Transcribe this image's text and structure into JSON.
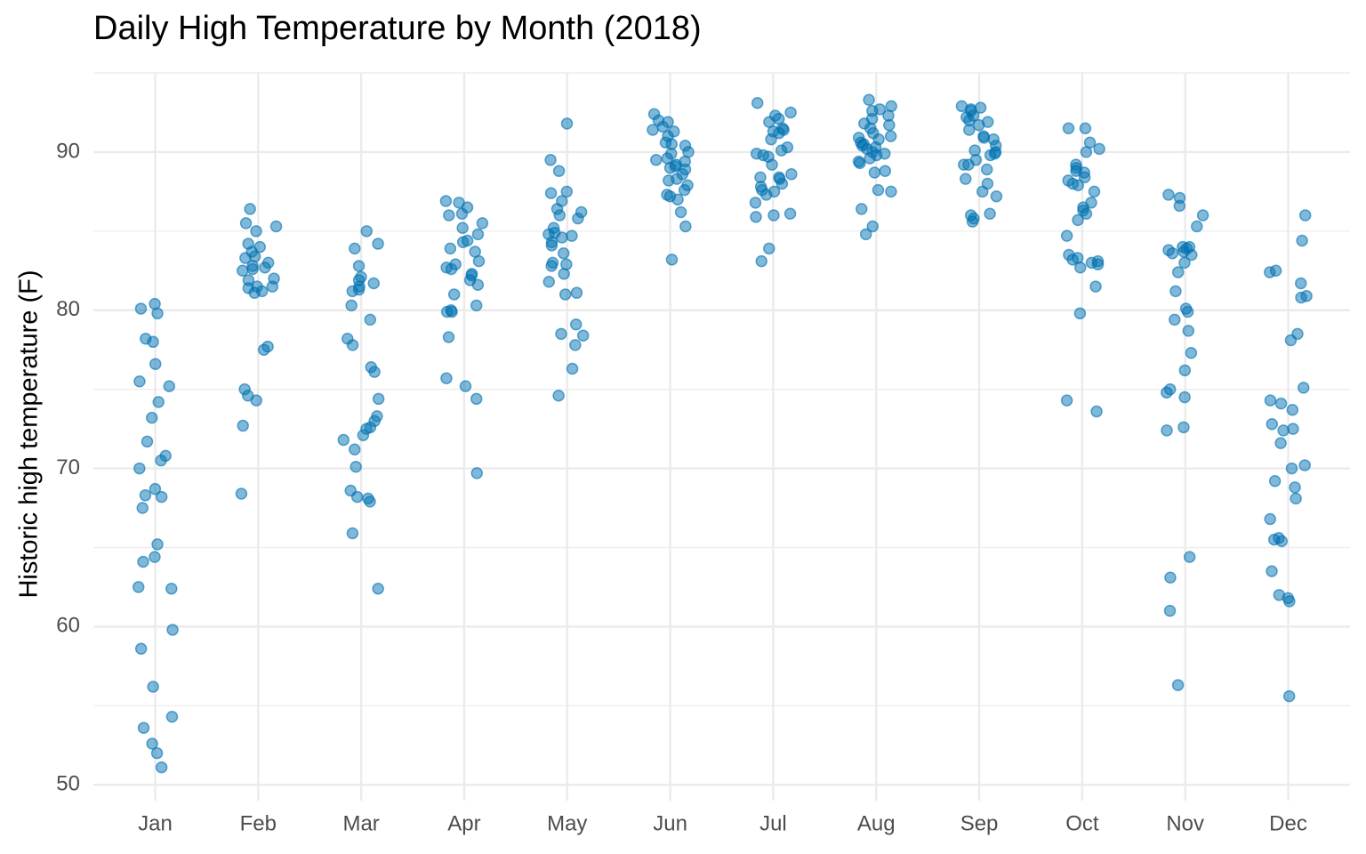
{
  "chart_data": {
    "type": "strip",
    "title": "Daily High Temperature by Month (2018)",
    "y_label": "Historic high temperature (F)",
    "categories": [
      "Jan",
      "Feb",
      "Mar",
      "Apr",
      "May",
      "Jun",
      "Jul",
      "Aug",
      "Sep",
      "Oct",
      "Nov",
      "Dec"
    ],
    "color": "#0072b2",
    "values": [
      [
        80.4,
        79.8,
        80.1,
        78.2,
        78.0,
        76.6,
        75.5,
        75.2,
        74.2,
        73.2,
        71.7,
        70.8,
        70.5,
        70.0,
        68.7,
        68.3,
        68.2,
        67.5,
        65.2,
        64.4,
        64.1,
        62.5,
        62.4,
        59.8,
        58.6,
        56.2,
        54.3,
        53.6,
        52.6,
        52.0,
        51.1
      ],
      [
        86.4,
        85.5,
        85.3,
        85.0,
        84.2,
        84.0,
        83.7,
        83.3,
        83.0,
        82.8,
        82.6,
        82.5,
        82.0,
        81.9,
        81.5,
        81.5,
        81.4,
        81.2,
        81.1,
        77.7,
        77.5,
        75.0,
        74.6,
        74.3,
        72.7,
        68.4,
        83.4,
        82.7
      ],
      [
        85.0,
        84.2,
        83.9,
        82.8,
        82.1,
        81.9,
        81.7,
        81.5,
        81.3,
        81.2,
        80.3,
        79.4,
        78.2,
        77.8,
        76.4,
        76.1,
        74.4,
        73.3,
        73.0,
        72.6,
        72.5,
        72.1,
        71.8,
        71.2,
        70.1,
        68.6,
        68.2,
        68.1,
        67.9,
        65.9,
        62.4
      ],
      [
        86.9,
        86.8,
        86.5,
        86.1,
        86.0,
        85.5,
        85.2,
        84.8,
        84.4,
        84.3,
        83.9,
        83.7,
        83.1,
        82.9,
        82.7,
        82.6,
        82.3,
        82.2,
        81.9,
        81.6,
        81.0,
        80.3,
        79.9,
        79.9,
        78.3,
        75.7,
        75.2,
        74.4,
        69.7,
        80.0
      ],
      [
        91.8,
        89.5,
        88.8,
        87.5,
        87.4,
        86.9,
        86.4,
        86.0,
        85.8,
        85.2,
        84.9,
        84.8,
        84.7,
        84.3,
        83.6,
        83.0,
        82.9,
        82.3,
        81.8,
        81.1,
        81.0,
        79.1,
        78.5,
        78.4,
        77.8,
        76.3,
        74.6,
        84.6,
        82.8,
        86.2,
        84.1
      ],
      [
        92.4,
        92.0,
        91.6,
        91.4,
        91.3,
        91.0,
        90.6,
        90.5,
        90.4,
        89.9,
        89.6,
        89.5,
        89.4,
        89.2,
        89.0,
        88.9,
        88.3,
        88.2,
        87.9,
        87.6,
        87.3,
        87.2,
        87.0,
        86.2,
        85.3,
        83.2,
        90.0,
        89.1,
        88.6,
        91.9
      ],
      [
        93.1,
        92.5,
        92.3,
        92.1,
        91.9,
        91.5,
        91.4,
        91.3,
        90.8,
        90.3,
        90.1,
        89.9,
        89.7,
        89.2,
        88.6,
        88.4,
        88.4,
        88.3,
        87.8,
        87.6,
        87.5,
        87.3,
        86.8,
        86.1,
        86.0,
        85.9,
        83.9,
        83.1,
        91.2,
        89.8,
        88.0
      ],
      [
        93.3,
        92.9,
        92.7,
        92.6,
        92.3,
        91.8,
        91.5,
        91.2,
        91.0,
        90.8,
        90.6,
        90.5,
        90.3,
        90.2,
        90.0,
        89.8,
        89.6,
        89.4,
        89.3,
        88.8,
        88.7,
        87.6,
        87.5,
        86.4,
        85.3,
        84.8,
        92.1,
        90.9,
        90.4,
        89.9,
        91.7
      ],
      [
        92.9,
        92.8,
        92.7,
        92.3,
        92.0,
        91.9,
        91.7,
        91.4,
        90.9,
        90.8,
        90.4,
        90.1,
        90.0,
        89.8,
        89.5,
        89.2,
        89.2,
        88.3,
        88.0,
        87.5,
        87.2,
        86.0,
        85.8,
        85.6,
        92.2,
        89.9,
        91.0,
        86.1,
        88.9,
        92.6
      ],
      [
        91.5,
        91.5,
        90.6,
        90.2,
        90.0,
        89.2,
        88.8,
        88.7,
        88.4,
        88.2,
        87.9,
        87.5,
        86.8,
        86.5,
        86.3,
        86.1,
        85.7,
        84.7,
        83.5,
        83.3,
        83.1,
        83.0,
        82.9,
        82.7,
        81.5,
        79.8,
        74.3,
        73.6,
        89.0,
        88.0,
        83.2
      ],
      [
        87.3,
        87.1,
        86.6,
        86.0,
        85.3,
        84.0,
        83.9,
        83.8,
        83.7,
        83.6,
        83.0,
        82.4,
        81.2,
        80.1,
        79.9,
        79.4,
        78.7,
        77.3,
        76.2,
        75.0,
        74.8,
        74.5,
        72.6,
        72.4,
        64.4,
        63.1,
        61.0,
        56.3,
        84.0,
        83.5
      ],
      [
        86.0,
        84.4,
        82.5,
        82.4,
        81.7,
        80.9,
        80.8,
        78.5,
        78.1,
        75.1,
        74.3,
        74.1,
        73.7,
        72.8,
        72.5,
        72.4,
        71.6,
        70.2,
        70.0,
        69.2,
        68.8,
        68.1,
        66.8,
        65.6,
        65.5,
        65.4,
        63.5,
        62.0,
        61.8,
        61.6,
        55.6
      ]
    ],
    "ylim": [
      49,
      95
    ],
    "yticks": [
      50,
      60,
      70,
      80,
      90
    ],
    "y_minor_ticks": [
      55,
      65,
      75,
      85,
      95
    ],
    "grid": true
  }
}
